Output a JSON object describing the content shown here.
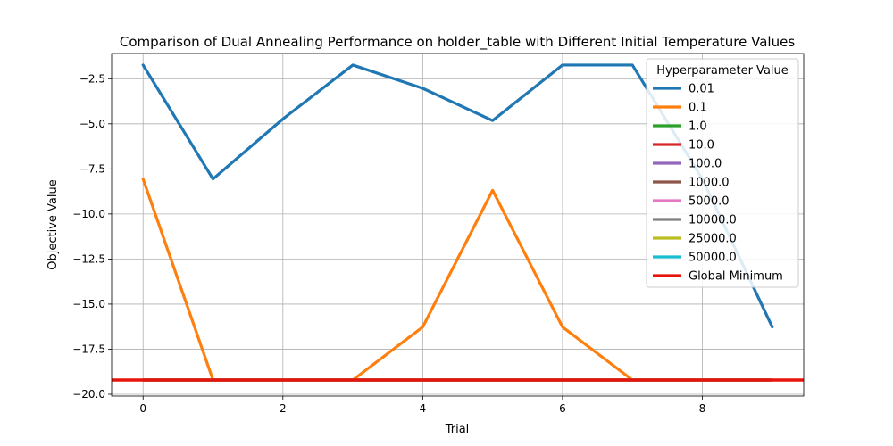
{
  "chart_data": {
    "type": "line",
    "title": "Comparison of Dual Annealing Performance on holder_table with Different Initial Temperature Values",
    "xlabel": "Trial",
    "ylabel": "Objective Value",
    "xlim": [
      -0.45,
      9.45
    ],
    "ylim": [
      -20.1,
      -1.1
    ],
    "xticks": [
      0,
      2,
      4,
      6,
      8
    ],
    "xtick_labels": [
      "0",
      "2",
      "4",
      "6",
      "8"
    ],
    "yticks": [
      -2.5,
      -5.0,
      -7.5,
      -10.0,
      -12.5,
      -15.0,
      -17.5,
      -20.0
    ],
    "ytick_labels": [
      "−2.5",
      "−5.0",
      "−7.5",
      "−10.0",
      "−12.5",
      "−15.0",
      "−17.5",
      "−20.0"
    ],
    "grid": true,
    "legend": {
      "title": "Hyperparameter Value",
      "placement": "upper right"
    },
    "x": [
      0,
      1,
      2,
      3,
      4,
      5,
      6,
      7,
      8,
      9
    ],
    "series": [
      {
        "name": "0.01",
        "color": "#1f77b4",
        "values": [
          -1.74,
          -8.06,
          -4.73,
          -1.74,
          -3.03,
          -4.82,
          -1.74,
          -1.74,
          -8.06,
          -16.27
        ]
      },
      {
        "name": "0.1",
        "color": "#ff7f0e",
        "values": [
          -8.06,
          -19.21,
          -19.21,
          -19.21,
          -16.27,
          -8.69,
          -16.27,
          -19.21,
          -19.21,
          -19.21
        ]
      },
      {
        "name": "1.0",
        "color": "#2ca02c",
        "values": [
          -19.21,
          -19.21,
          -19.21,
          -19.21,
          -19.21,
          -19.21,
          -19.21,
          -19.21,
          -19.21,
          -19.21
        ]
      },
      {
        "name": "10.0",
        "color": "#d62728",
        "values": [
          -19.21,
          -19.21,
          -19.21,
          -19.21,
          -19.21,
          -19.21,
          -19.21,
          -19.21,
          -19.21,
          -19.21
        ]
      },
      {
        "name": "100.0",
        "color": "#9467bd",
        "values": [
          -19.21,
          -19.21,
          -19.21,
          -19.21,
          -19.21,
          -19.21,
          -19.21,
          -19.21,
          -19.21,
          -19.21
        ]
      },
      {
        "name": "1000.0",
        "color": "#8c564b",
        "values": [
          -19.21,
          -19.21,
          -19.21,
          -19.21,
          -19.21,
          -19.21,
          -19.21,
          -19.21,
          -19.21,
          -19.21
        ]
      },
      {
        "name": "5000.0",
        "color": "#e377c2",
        "values": [
          -19.21,
          -19.21,
          -19.21,
          -19.21,
          -19.21,
          -19.21,
          -19.21,
          -19.21,
          -19.21,
          -19.21
        ]
      },
      {
        "name": "10000.0",
        "color": "#7f7f7f",
        "values": [
          -19.21,
          -19.21,
          -19.21,
          -19.21,
          -19.21,
          -19.21,
          -19.21,
          -19.21,
          -19.21,
          -19.21
        ]
      },
      {
        "name": "25000.0",
        "color": "#bcbd22",
        "values": [
          -19.21,
          -19.21,
          -19.21,
          -19.21,
          -19.21,
          -19.21,
          -19.21,
          -19.21,
          -19.21,
          -19.21
        ]
      },
      {
        "name": "50000.0",
        "color": "#17becf",
        "values": [
          -19.21,
          -19.21,
          -19.21,
          -19.21,
          -19.21,
          -19.21,
          -19.21,
          -19.21,
          -19.21,
          -19.21
        ]
      }
    ],
    "reference_line": {
      "name": "Global Minimum",
      "color": "#e8140c",
      "y": -19.2085
    }
  }
}
